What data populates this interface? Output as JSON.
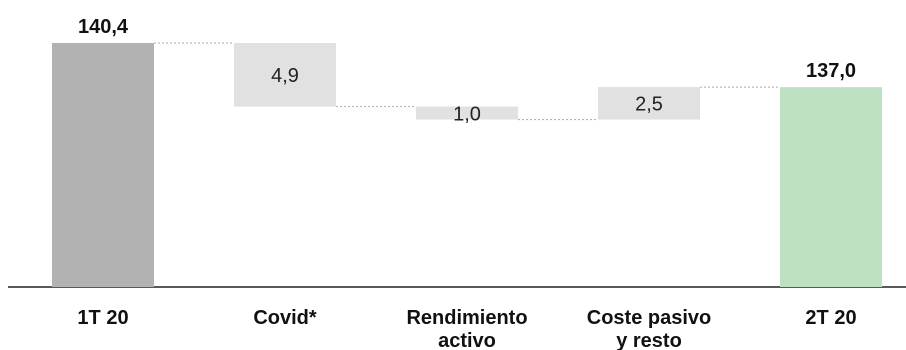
{
  "chart_data": {
    "type": "bar",
    "subtype": "waterfall",
    "categories": [
      [
        "1T 20"
      ],
      [
        "Covid*"
      ],
      [
        "Rendimiento",
        "activo"
      ],
      [
        "Coste pasivo",
        "y resto"
      ],
      [
        "2T 20"
      ]
    ],
    "bars": [
      {
        "kind": "total",
        "value": 140.4,
        "label": "140,4",
        "color": "#b2b2b2"
      },
      {
        "kind": "decrease",
        "value": 4.9,
        "label": "4,9",
        "color": "#e1e1e1"
      },
      {
        "kind": "decrease",
        "value": 1.0,
        "label": "1,0",
        "color": "#e1e1e1"
      },
      {
        "kind": "increase",
        "value": 2.5,
        "label": "2,5",
        "color": "#e1e1e1"
      },
      {
        "kind": "total",
        "value": 137.0,
        "label": "137,0",
        "color": "#bde0c2"
      }
    ],
    "connector_color": "#aaaaaa",
    "axis_color": "#222222",
    "grid": false,
    "legend": false
  }
}
